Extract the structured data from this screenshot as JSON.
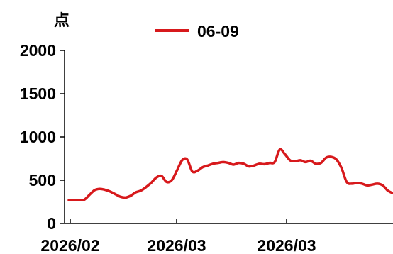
{
  "chart_data": {
    "type": "line",
    "ylabel": "点",
    "ylim": [
      0,
      2000
    ],
    "yticks": [
      "0",
      "500",
      "1000",
      "1500",
      "2000"
    ],
    "xtick_labels": [
      "2026/02",
      "2026/03",
      "2026/03"
    ],
    "legend_position": "top-center",
    "grid": false,
    "series": [
      {
        "name": "06-09",
        "color": "#d7191c",
        "values": [
          270,
          268,
          270,
          275,
          330,
          385,
          400,
          390,
          370,
          340,
          310,
          300,
          320,
          360,
          380,
          420,
          470,
          530,
          550,
          480,
          500,
          610,
          730,
          740,
          600,
          610,
          650,
          670,
          690,
          700,
          710,
          700,
          680,
          700,
          690,
          660,
          670,
          690,
          685,
          700,
          710,
          855,
          800,
          730,
          720,
          730,
          710,
          725,
          690,
          700,
          760,
          770,
          740,
          640,
          480,
          460,
          470,
          460,
          440,
          450,
          460,
          440,
          380,
          350
        ]
      }
    ]
  }
}
